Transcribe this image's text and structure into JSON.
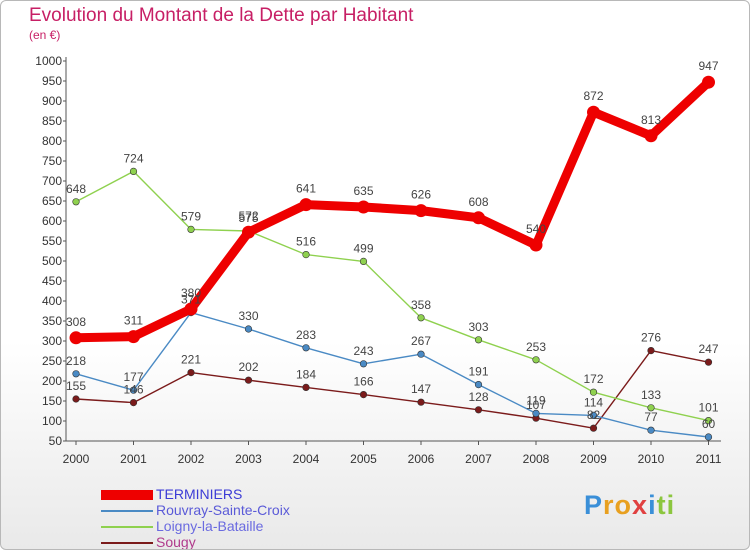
{
  "chart_data": {
    "type": "line",
    "title": "Evolution du Montant de la Dette par Habitant",
    "subtitle": "(en €)",
    "x": [
      "2000",
      "2001",
      "2002",
      "2003",
      "2004",
      "2005",
      "2006",
      "2007",
      "2008",
      "2009",
      "2010",
      "2011"
    ],
    "ylim": [
      50,
      1000
    ],
    "yticks": [
      50,
      100,
      150,
      200,
      250,
      300,
      350,
      400,
      450,
      500,
      550,
      600,
      650,
      700,
      750,
      800,
      850,
      900,
      950,
      1000
    ],
    "grid": false,
    "legend_position": "bottom-left",
    "series": [
      {
        "name": "TERMINIERS",
        "color": "#ee0000",
        "values": [
          308,
          311,
          380,
          572,
          641,
          635,
          626,
          608,
          540,
          872,
          813,
          947
        ]
      },
      {
        "name": "Rouvray-Sainte-Croix",
        "color": "#4a8ac4",
        "values": [
          218,
          177,
          371,
          330,
          283,
          243,
          267,
          191,
          119,
          114,
          77,
          60
        ]
      },
      {
        "name": "Loigny-la-Bataille",
        "color": "#8fd14f",
        "values": [
          648,
          724,
          579,
          575,
          516,
          499,
          358,
          303,
          253,
          172,
          133,
          101
        ]
      },
      {
        "name": "Sougy",
        "color": "#7b1b1b",
        "values": [
          155,
          146,
          221,
          202,
          184,
          166,
          147,
          128,
          107,
          82,
          276,
          247
        ]
      }
    ]
  },
  "logo": {
    "text": "Proxiti",
    "letters": [
      {
        "ch": "P",
        "color": "#3a8fd8"
      },
      {
        "ch": "r",
        "color": "#e8a020"
      },
      {
        "ch": "o",
        "color": "#e8a020"
      },
      {
        "ch": "x",
        "color": "#e04040"
      },
      {
        "ch": "i",
        "color": "#3a8fd8"
      },
      {
        "ch": "t",
        "color": "#8cc63f"
      },
      {
        "ch": "i",
        "color": "#8cc63f"
      }
    ]
  }
}
